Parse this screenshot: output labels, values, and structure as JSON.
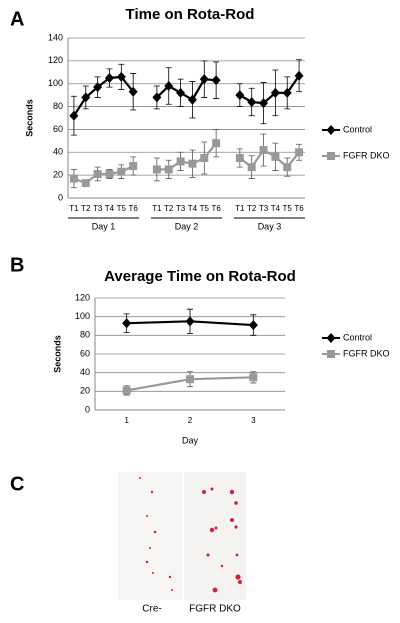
{
  "panels": {
    "labels": [
      "A",
      "B",
      "C"
    ],
    "image_captions": [
      "Cre-",
      "FGFR DKO"
    ]
  },
  "chart_data": [
    {
      "type": "line",
      "title": "Time on Rota-Rod",
      "y_label": "Seconds",
      "categories": [
        "T1",
        "T2",
        "T3",
        "T4",
        "T5",
        "T6",
        null,
        "T1",
        "T2",
        "T3",
        "T4",
        "T5",
        "T6",
        null,
        "T1",
        "T2",
        "T3",
        "T4",
        "T5",
        "T6"
      ],
      "groups": [
        "Day 1",
        "Day 2",
        "Day 3"
      ],
      "series": [
        {
          "name": "Control",
          "color": "#000000",
          "marker": "diamond",
          "values": [
            72,
            88,
            97,
            105,
            106,
            93,
            null,
            88,
            98,
            92,
            86,
            104,
            103,
            null,
            90,
            84,
            83,
            92,
            92,
            107
          ],
          "errors": [
            17,
            10,
            9,
            8,
            11,
            16,
            null,
            10,
            16,
            12,
            16,
            16,
            16,
            null,
            10,
            12,
            18,
            20,
            14,
            14
          ]
        },
        {
          "name": "FGFR DKO",
          "color": "#999999",
          "marker": "square",
          "values": [
            17,
            13,
            21,
            21,
            23,
            28,
            null,
            25,
            25,
            32,
            30,
            35,
            48,
            null,
            35,
            27,
            42,
            36,
            27,
            40
          ],
          "errors": [
            8,
            3,
            6,
            4,
            6,
            8,
            null,
            10,
            8,
            8,
            12,
            14,
            12,
            null,
            8,
            10,
            14,
            12,
            8,
            7
          ]
        }
      ],
      "ylim": [
        0,
        140
      ],
      "yticks": [
        0,
        20,
        40,
        60,
        80,
        100,
        120,
        140
      ],
      "grid": true,
      "legend": "right"
    },
    {
      "type": "line",
      "title": "Average Time on Rota-Rod",
      "y_label": "Seconds",
      "x_label": "Day",
      "categories": [
        "1",
        "2",
        "3"
      ],
      "series": [
        {
          "name": "Control",
          "color": "#000000",
          "marker": "diamond",
          "values": [
            93,
            95,
            91
          ],
          "errors": [
            10,
            13,
            11
          ]
        },
        {
          "name": "FGFR DKO",
          "color": "#999999",
          "marker": "square",
          "values": [
            21,
            33,
            35
          ],
          "errors": [
            5,
            8,
            6
          ]
        }
      ],
      "ylim": [
        0,
        120
      ],
      "yticks": [
        0,
        20,
        40,
        60,
        80,
        100,
        120
      ],
      "grid": true,
      "legend": "right"
    }
  ]
}
